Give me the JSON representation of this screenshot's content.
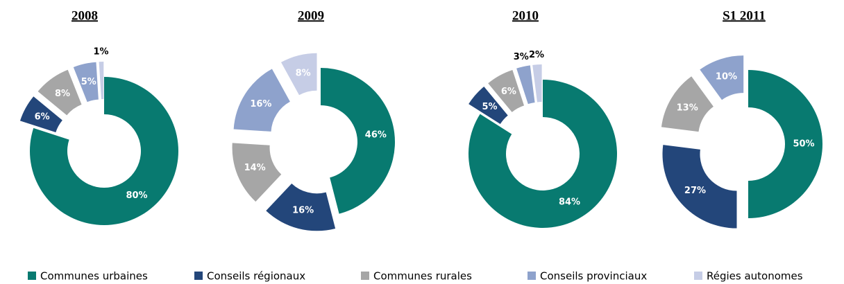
{
  "chart_data": [
    {
      "type": "pie",
      "title": "2008",
      "categories": [
        "Communes urbaines",
        "Conseils régionaux",
        "Communes rurales",
        "Conseils provinciaux",
        "Régies autonomes"
      ],
      "values": [
        80,
        6,
        8,
        5,
        1
      ],
      "value_labels": [
        "80%",
        "6%",
        "8%",
        "5%",
        "1%"
      ],
      "colors": [
        "#087a70",
        "#23467a",
        "#a6a6a6",
        "#8ea2cc",
        "#c6cde6"
      ]
    },
    {
      "type": "pie",
      "title": "2009",
      "categories": [
        "Communes urbaines",
        "Conseils régionaux",
        "Communes rurales",
        "Conseils provinciaux",
        "Régies autonomes"
      ],
      "values": [
        46,
        16,
        14,
        16,
        8
      ],
      "value_labels": [
        "46%",
        "16%",
        "14%",
        "16%",
        "8%"
      ],
      "colors": [
        "#087a70",
        "#23467a",
        "#a6a6a6",
        "#8ea2cc",
        "#c6cde6"
      ]
    },
    {
      "type": "pie",
      "title": "2010",
      "categories": [
        "Communes urbaines",
        "Conseils régionaux",
        "Communes rurales",
        "Conseils provinciaux",
        "Régies autonomes"
      ],
      "values": [
        84,
        5,
        6,
        3,
        2
      ],
      "value_labels": [
        "84%",
        "5%",
        "6%",
        "3%",
        "2%"
      ],
      "colors": [
        "#087a70",
        "#23467a",
        "#a6a6a6",
        "#8ea2cc",
        "#c6cde6"
      ]
    },
    {
      "type": "pie",
      "title": "S1 2011",
      "categories": [
        "Communes urbaines",
        "Conseils régionaux",
        "Communes rurales",
        "Conseils provinciaux",
        "Régies autonomes"
      ],
      "values": [
        50,
        27,
        13,
        10,
        null
      ],
      "value_labels": [
        "50%",
        "27%",
        "13%",
        "10%",
        null
      ],
      "colors": [
        "#087a70",
        "#23467a",
        "#a6a6a6",
        "#8ea2cc",
        "#c6cde6"
      ]
    }
  ]
}
